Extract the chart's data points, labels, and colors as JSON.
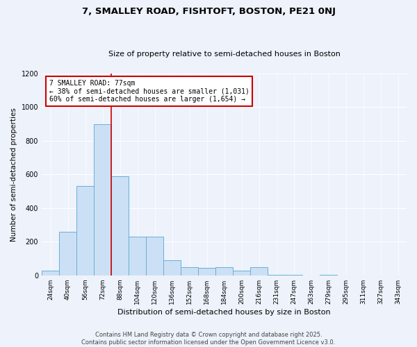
{
  "title": "7, SMALLEY ROAD, FISHTOFT, BOSTON, PE21 0NJ",
  "subtitle": "Size of property relative to semi-detached houses in Boston",
  "xlabel": "Distribution of semi-detached houses by size in Boston",
  "ylabel": "Number of semi-detached properties",
  "categories": [
    "24sqm",
    "40sqm",
    "56sqm",
    "72sqm",
    "88sqm",
    "104sqm",
    "120sqm",
    "136sqm",
    "152sqm",
    "168sqm",
    "184sqm",
    "200sqm",
    "216sqm",
    "231sqm",
    "247sqm",
    "263sqm",
    "279sqm",
    "295sqm",
    "311sqm",
    "327sqm",
    "343sqm"
  ],
  "values": [
    30,
    260,
    530,
    900,
    590,
    230,
    230,
    90,
    50,
    45,
    50,
    30,
    50,
    5,
    5,
    0,
    5,
    0,
    0,
    0,
    0
  ],
  "bar_color": "#cce0f5",
  "bar_edge_color": "#6aaed6",
  "vline_x": 3.5,
  "vline_color": "#cc0000",
  "annotation_title": "7 SMALLEY ROAD: 77sqm",
  "annotation_line1": "← 38% of semi-detached houses are smaller (1,031)",
  "annotation_line2": "60% of semi-detached houses are larger (1,654) →",
  "annotation_box_color": "#cc0000",
  "ylim": [
    0,
    1200
  ],
  "yticks": [
    0,
    200,
    400,
    600,
    800,
    1000,
    1200
  ],
  "footer1": "Contains HM Land Registry data © Crown copyright and database right 2025.",
  "footer2": "Contains public sector information licensed under the Open Government Licence v3.0.",
  "bg_color": "#edf2fb",
  "plot_bg_color": "#edf2fb",
  "grid_color": "#ffffff",
  "title_fontsize": 9.5,
  "subtitle_fontsize": 8,
  "ylabel_fontsize": 7.5,
  "xlabel_fontsize": 8,
  "tick_fontsize": 6.5,
  "footer_fontsize": 6
}
